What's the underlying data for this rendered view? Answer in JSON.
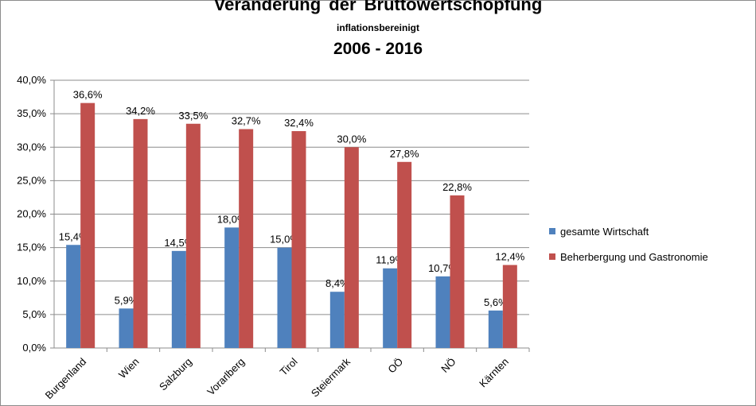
{
  "chart_data": {
    "type": "bar",
    "title": "Veränderung der Bruttowertschöpfung",
    "subtitle": "inflationsbereinigt",
    "period": "2006 - 2016",
    "categories": [
      "Burgenland",
      "Wien",
      "Salzburg",
      "Vorarlberg",
      "Tirol",
      "Steiermark",
      "OÖ",
      "NÖ",
      "Kärnten"
    ],
    "series": [
      {
        "name": "gesamte Wirtschaft",
        "color": "#4f81bd",
        "values": [
          15.4,
          5.9,
          14.5,
          18.0,
          15.0,
          8.4,
          11.9,
          10.7,
          5.6
        ],
        "labels": [
          "15,4%",
          "5,9%",
          "14,5%",
          "18,0%",
          "15,0%",
          "8,4%",
          "11,9%",
          "10,7%",
          "5,6%"
        ]
      },
      {
        "name": "Beherbergung und Gastronomie",
        "color": "#c0504d",
        "values": [
          36.6,
          34.2,
          33.5,
          32.7,
          32.4,
          30.0,
          27.8,
          22.8,
          12.4
        ],
        "labels": [
          "36,6%",
          "34,2%",
          "33,5%",
          "32,7%",
          "32,4%",
          "30,0%",
          "27,8%",
          "22,8%",
          "12,4%"
        ]
      }
    ],
    "yticks": [
      "0,0%",
      "5,0%",
      "10,0%",
      "15,0%",
      "20,0%",
      "25,0%",
      "30,0%",
      "35,0%",
      "40,0%"
    ],
    "ylim": [
      0,
      40
    ],
    "grid": true,
    "legend_position": "right"
  }
}
